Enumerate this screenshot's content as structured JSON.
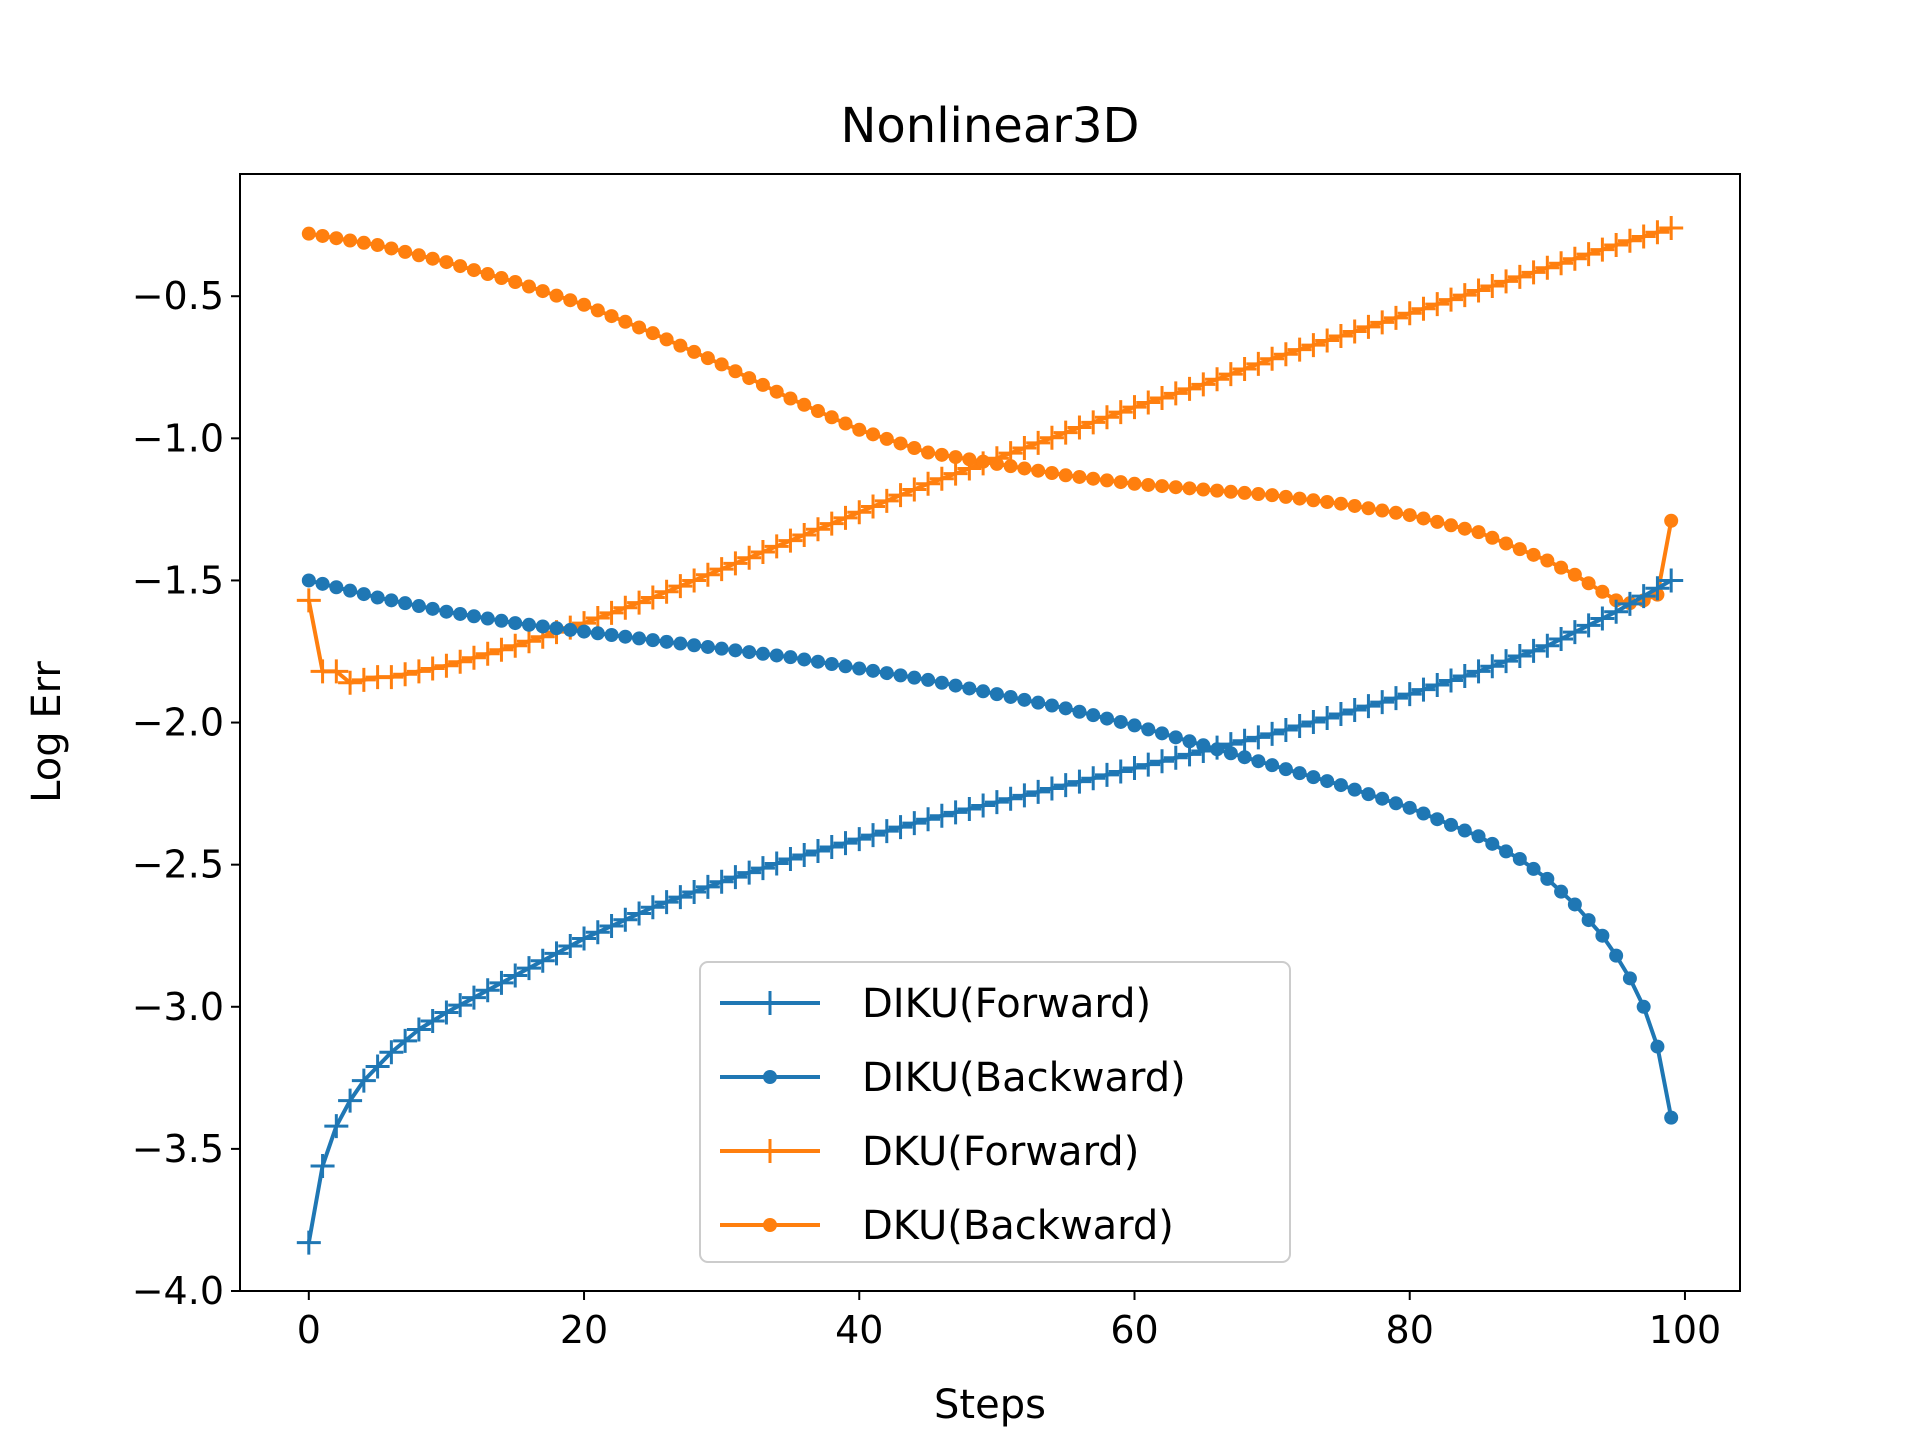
{
  "chart_data": {
    "type": "line",
    "title": "Nonlinear3D",
    "xlabel": "Steps",
    "ylabel": "Log Err",
    "xlim": [
      -5,
      104
    ],
    "ylim": [
      -4.0,
      -0.07
    ],
    "xticks": [
      0,
      20,
      40,
      60,
      80,
      100
    ],
    "xtick_labels": [
      "0",
      "20",
      "40",
      "60",
      "80",
      "100"
    ],
    "yticks": [
      -4.0,
      -3.5,
      -3.0,
      -2.5,
      -2.0,
      -1.5,
      -1.0,
      -0.5
    ],
    "ytick_labels": [
      "−4.0",
      "−3.5",
      "−3.0",
      "−2.5",
      "−2.0",
      "−1.5",
      "−1.0",
      "−0.5"
    ],
    "grid": false,
    "legend_position": "lower-center",
    "x_range": {
      "start": 0,
      "end": 99,
      "step": 1
    },
    "series": [
      {
        "name": "DIKU(Forward)",
        "color": "#1f77b4",
        "marker": "plus",
        "points": [
          [
            0,
            -3.83
          ],
          [
            1,
            -3.56
          ],
          [
            2,
            -3.42
          ],
          [
            3,
            -3.33
          ],
          [
            4,
            -3.26
          ],
          [
            5,
            -3.21
          ],
          [
            6,
            -3.16
          ],
          [
            7,
            -3.12
          ],
          [
            8,
            -3.08
          ],
          [
            9,
            -3.05
          ],
          [
            10,
            -3.02
          ],
          [
            15,
            -2.89
          ],
          [
            20,
            -2.76
          ],
          [
            25,
            -2.65
          ],
          [
            30,
            -2.56
          ],
          [
            35,
            -2.48
          ],
          [
            40,
            -2.41
          ],
          [
            45,
            -2.34
          ],
          [
            50,
            -2.28
          ],
          [
            55,
            -2.22
          ],
          [
            60,
            -2.16
          ],
          [
            65,
            -2.1
          ],
          [
            70,
            -2.04
          ],
          [
            75,
            -1.97
          ],
          [
            80,
            -1.9
          ],
          [
            85,
            -1.82
          ],
          [
            90,
            -1.73
          ],
          [
            95,
            -1.61
          ],
          [
            99,
            -1.5
          ]
        ]
      },
      {
        "name": "DIKU(Backward)",
        "color": "#1f77b4",
        "marker": "dot",
        "points": [
          [
            0,
            -1.5
          ],
          [
            5,
            -1.56
          ],
          [
            10,
            -1.61
          ],
          [
            15,
            -1.65
          ],
          [
            20,
            -1.68
          ],
          [
            25,
            -1.71
          ],
          [
            30,
            -1.74
          ],
          [
            35,
            -1.77
          ],
          [
            40,
            -1.81
          ],
          [
            45,
            -1.85
          ],
          [
            50,
            -1.9
          ],
          [
            55,
            -1.95
          ],
          [
            60,
            -2.01
          ],
          [
            65,
            -2.08
          ],
          [
            70,
            -2.15
          ],
          [
            75,
            -2.22
          ],
          [
            80,
            -2.3
          ],
          [
            85,
            -2.4
          ],
          [
            88,
            -2.48
          ],
          [
            90,
            -2.55
          ],
          [
            92,
            -2.64
          ],
          [
            94,
            -2.75
          ],
          [
            95,
            -2.82
          ],
          [
            96,
            -2.9
          ],
          [
            97,
            -3.0
          ],
          [
            98,
            -3.14
          ],
          [
            99,
            -3.39
          ]
        ]
      },
      {
        "name": "DKU(Forward)",
        "color": "#ff7f0e",
        "marker": "plus",
        "points": [
          [
            0,
            -1.57
          ],
          [
            1,
            -1.82
          ],
          [
            2,
            -1.82
          ],
          [
            3,
            -1.86
          ],
          [
            4,
            -1.85
          ],
          [
            5,
            -1.84
          ],
          [
            6,
            -1.84
          ],
          [
            8,
            -1.82
          ],
          [
            10,
            -1.8
          ],
          [
            15,
            -1.73
          ],
          [
            20,
            -1.65
          ],
          [
            25,
            -1.56
          ],
          [
            30,
            -1.46
          ],
          [
            35,
            -1.36
          ],
          [
            40,
            -1.26
          ],
          [
            45,
            -1.16
          ],
          [
            50,
            -1.07
          ],
          [
            55,
            -0.98
          ],
          [
            60,
            -0.89
          ],
          [
            65,
            -0.81
          ],
          [
            70,
            -0.72
          ],
          [
            75,
            -0.64
          ],
          [
            80,
            -0.56
          ],
          [
            85,
            -0.48
          ],
          [
            90,
            -0.4
          ],
          [
            95,
            -0.32
          ],
          [
            99,
            -0.26
          ]
        ]
      },
      {
        "name": "DKU(Backward)",
        "color": "#ff7f0e",
        "marker": "dot",
        "points": [
          [
            0,
            -0.28
          ],
          [
            5,
            -0.32
          ],
          [
            10,
            -0.38
          ],
          [
            15,
            -0.45
          ],
          [
            20,
            -0.53
          ],
          [
            25,
            -0.63
          ],
          [
            30,
            -0.74
          ],
          [
            35,
            -0.86
          ],
          [
            40,
            -0.97
          ],
          [
            45,
            -1.05
          ],
          [
            50,
            -1.09
          ],
          [
            55,
            -1.13
          ],
          [
            60,
            -1.16
          ],
          [
            65,
            -1.18
          ],
          [
            70,
            -1.2
          ],
          [
            75,
            -1.23
          ],
          [
            80,
            -1.27
          ],
          [
            85,
            -1.33
          ],
          [
            88,
            -1.39
          ],
          [
            90,
            -1.43
          ],
          [
            92,
            -1.48
          ],
          [
            94,
            -1.54
          ],
          [
            95,
            -1.57
          ],
          [
            96,
            -1.58
          ],
          [
            97,
            -1.57
          ],
          [
            98,
            -1.55
          ],
          [
            99,
            -1.29
          ]
        ]
      }
    ]
  }
}
